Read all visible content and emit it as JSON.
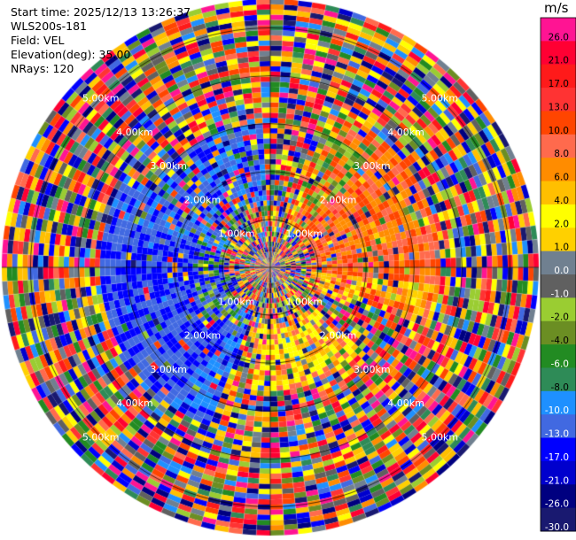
{
  "header": {
    "start_time": "Start time: 2025/12/13 13:26:37",
    "instrument": "WLS200s-181",
    "field": "Field: VEL",
    "elevation": "Elevation(deg): 35.00",
    "nrays": "NRays: 120"
  },
  "chart_data": {
    "type": "heatmap",
    "projection": "polar (PPI)",
    "field": "VEL",
    "units": "m/s",
    "nrays": 120,
    "elevation_deg": 35.0,
    "range_rings": [
      {
        "radius_km": 1.0,
        "label": "1.00km"
      },
      {
        "radius_km": 2.0,
        "label": "2.00km"
      },
      {
        "radius_km": 3.0,
        "label": "3.00km"
      },
      {
        "radius_km": 4.0,
        "label": "4.00km"
      },
      {
        "radius_km": 5.0,
        "label": "5.00km"
      }
    ],
    "colorbar": {
      "title": "m/s",
      "tick_labels": [
        "26.0",
        "21.0",
        "17.0",
        "13.0",
        "10.0",
        "8.0",
        "6.0",
        "4.0",
        "2.0",
        "1.0",
        "0.0",
        "-1.0",
        "-2.0",
        "-4.0",
        "-6.0",
        "-8.0",
        "-10.0",
        "-13.0",
        "-17.0",
        "-21.0",
        "-26.0",
        "-30.0"
      ],
      "colors": [
        "#ff1493",
        "#ff0033",
        "#ff1a1a",
        "#ff3333",
        "#ff4500",
        "#ff6a4d",
        "#ff8c00",
        "#ffbf00",
        "#ffff00",
        "#ffd000",
        "#708090",
        "#606060",
        "#9acd32",
        "#6b8e23",
        "#228b22",
        "#2e8b57",
        "#1e90ff",
        "#4169e1",
        "#0000ff",
        "#0000cd",
        "#000080",
        "#191970"
      ]
    },
    "patterns": {
      "inner_noise_radius_km": 0.9,
      "coherent_band_km": [
        1.0,
        3.5
      ],
      "receding_sector_deg": [
        20,
        110
      ],
      "approaching_sector_deg": [
        200,
        300
      ],
      "outer_noise_from_km": 3.4
    }
  }
}
